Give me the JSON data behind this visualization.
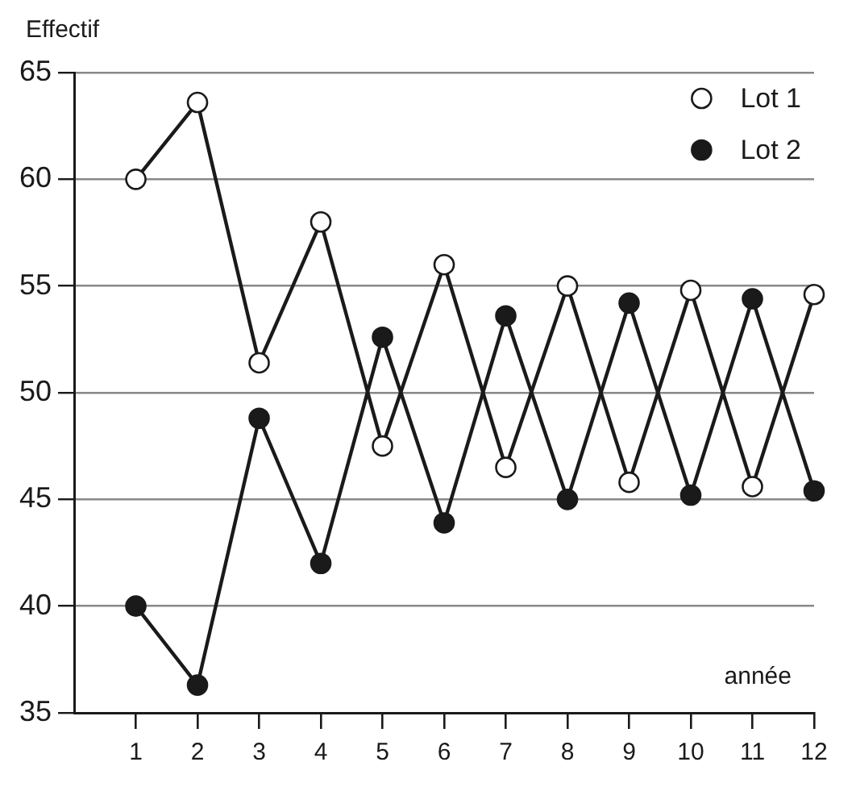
{
  "chart_data": {
    "type": "line",
    "ylabel": "Effectif",
    "xlabel": "année",
    "x": [
      1,
      2,
      3,
      4,
      5,
      6,
      7,
      8,
      9,
      10,
      11,
      12
    ],
    "series": [
      {
        "name": "Lot 1",
        "color": "#ffffff",
        "values": [
          60.0,
          63.6,
          51.4,
          58.0,
          47.5,
          56.0,
          46.5,
          55.0,
          45.8,
          54.8,
          45.6,
          54.6
        ]
      },
      {
        "name": "Lot 2",
        "color": "#1a1a1a",
        "values": [
          40.0,
          36.3,
          48.8,
          42.0,
          52.6,
          43.9,
          53.6,
          45.0,
          54.2,
          45.2,
          54.4,
          45.4
        ]
      }
    ],
    "xlim": [
      0,
      12
    ],
    "xticks": [
      1,
      2,
      3,
      4,
      5,
      6,
      7,
      8,
      9,
      10,
      11,
      12
    ],
    "ylim": [
      35,
      65
    ],
    "yticks": [
      35,
      40,
      45,
      50,
      55,
      60,
      65
    ],
    "grid": "y",
    "legend": "top right",
    "marker": "circle",
    "line_style": "solid"
  }
}
